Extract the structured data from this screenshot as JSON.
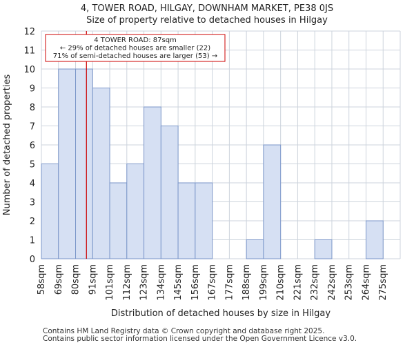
{
  "chart_data": {
    "type": "bar",
    "title_line1": "4, TOWER ROAD, HILGAY, DOWNHAM MARKET, PE38 0JS",
    "title_line2": "Size of property relative to detached houses in Hilgay",
    "xlabel": "Distribution of detached houses by size in Hilgay",
    "ylabel": "Number of detached properties",
    "categories": [
      "58sqm",
      "69sqm",
      "80sqm",
      "91sqm",
      "101sqm",
      "112sqm",
      "123sqm",
      "134sqm",
      "145sqm",
      "156sqm",
      "167sqm",
      "177sqm",
      "188sqm",
      "199sqm",
      "210sqm",
      "221sqm",
      "232sqm",
      "242sqm",
      "253sqm",
      "264sqm",
      "275sqm"
    ],
    "values": [
      5,
      10,
      10,
      9,
      4,
      5,
      8,
      7,
      4,
      4,
      0,
      0,
      1,
      6,
      0,
      0,
      1,
      0,
      0,
      2,
      0
    ],
    "ylim": [
      0,
      12
    ],
    "yticks": [
      0,
      1,
      2,
      3,
      4,
      5,
      6,
      7,
      8,
      9,
      10,
      11,
      12
    ],
    "grid": true,
    "marker": {
      "value_sqm": 87,
      "color": "#cc0000",
      "label_line1": "4 TOWER ROAD: 87sqm",
      "label_line2": "← 29% of detached houses are smaller (22)",
      "label_line3": "71% of semi-detached houses are larger (53) →"
    }
  },
  "footer": {
    "line1": "Contains HM Land Registry data © Crown copyright and database right 2025.",
    "line2": "Contains public sector information licensed under the Open Government Licence v3.0."
  }
}
